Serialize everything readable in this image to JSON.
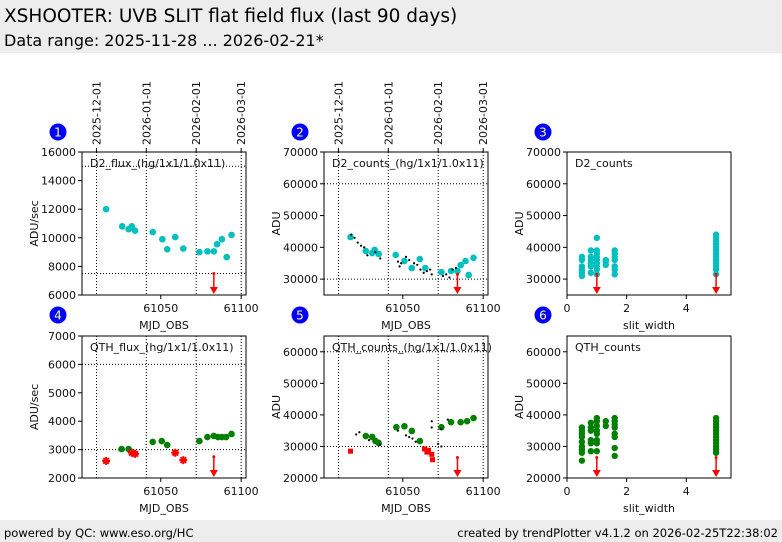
{
  "header": {
    "title": "XSHOOTER: UVB SLIT flat field flux (last 90 days)",
    "subtitle": "Data range: 2025-11-28 ... 2026-02-21*"
  },
  "footer": {
    "left": "powered by QC: www.eso.org/HC",
    "right": "created by trendPlotter v4.1.2 on 2026-02-25T22:38:02"
  },
  "colors": {
    "d2": "#00bfbf",
    "qth": "#008000",
    "outlier": "#ff0000",
    "badge": "#0000ff",
    "badge_text": "#ffff80",
    "header_bg": "#ededed"
  },
  "chart_data": [
    {
      "number": "1",
      "type": "scatter",
      "title": "D2_flux_(hg/1x1/1.0x11)",
      "xlabel": "MJD_OBS",
      "ylabel": "ADU/sec",
      "xlim": [
        61001,
        61103
      ],
      "ylim": [
        6000,
        16000
      ],
      "xticks": [
        61050,
        61100
      ],
      "yticks": [
        6000,
        8000,
        10000,
        12000,
        14000,
        16000
      ],
      "top_ticks": [
        {
          "x": 61010,
          "label": "2025-12-01"
        },
        {
          "x": 61041,
          "label": "2026-01-01"
        },
        {
          "x": 61072,
          "label": "2026-02-01"
        },
        {
          "x": 61100,
          "label": "2026-03-01"
        }
      ],
      "reference_lines": [
        15000,
        7500
      ],
      "series": [
        {
          "color": "#00bfbf",
          "marker": "dot",
          "x": [
            61016,
            61026,
            61030,
            61032,
            61034,
            61045,
            61051,
            61054,
            61059,
            61064,
            61074,
            61079,
            61083,
            61085,
            61088,
            61091,
            61094
          ],
          "y": [
            12000,
            10800,
            10600,
            10800,
            10500,
            10400,
            9900,
            9200,
            10050,
            9250,
            9000,
            9050,
            9050,
            9550,
            9900,
            8650,
            10200
          ]
        }
      ],
      "arrows": [
        {
          "x": 61083,
          "from": 7500,
          "to": 6000
        }
      ]
    },
    {
      "number": "2",
      "type": "scatter",
      "title": "D2_counts_(hg/1x1/1.0x11)",
      "xlabel": "MJD_OBS",
      "ylabel": "ADU",
      "xlim": [
        61001,
        61103
      ],
      "ylim": [
        25000,
        70000
      ],
      "xticks": [
        61050,
        61100
      ],
      "yticks": [
        30000,
        40000,
        50000,
        60000,
        70000
      ],
      "top_ticks": [
        {
          "x": 61010,
          "label": "2025-12-01"
        },
        {
          "x": 61041,
          "label": "2026-01-01"
        },
        {
          "x": 61072,
          "label": "2026-02-01"
        },
        {
          "x": 61100,
          "label": "2026-03-01"
        }
      ],
      "reference_lines": [
        60000,
        30000
      ],
      "series": [
        {
          "color": "#00bfbf",
          "marker": "dot",
          "x": [
            61017.5,
            61027,
            61031,
            61032.5,
            61035,
            61045.6,
            61051,
            61055.6,
            61060.6,
            61064,
            61074,
            61080,
            61084,
            61086,
            61089,
            61091,
            61094
          ],
          "y": [
            43250,
            38850,
            38200,
            39200,
            37900,
            37600,
            35700,
            33500,
            36300,
            33500,
            32200,
            32550,
            32550,
            34400,
            35700,
            31300,
            36700
          ]
        },
        {
          "color": "#000000",
          "marker": "small",
          "x": [
            61018,
            61020,
            61022,
            61024,
            61026,
            61028,
            61033,
            61036,
            61047,
            61048,
            61049,
            61052,
            61054,
            61057,
            61059,
            61061,
            61063,
            61065,
            61067,
            61068,
            61075,
            61077,
            61079,
            61081,
            61083
          ],
          "y": [
            44000,
            43000,
            41500,
            40500,
            40000,
            37500,
            38500,
            36500,
            35500,
            34000,
            35000,
            37000,
            36000,
            35000,
            34500,
            33000,
            32000,
            32500,
            33000,
            31500,
            31000,
            31500,
            30500,
            33000,
            33500
          ]
        }
      ],
      "arrows": [
        {
          "x": 61084,
          "from": 31500,
          "to": 25000
        }
      ]
    },
    {
      "number": "3",
      "type": "scatter",
      "title": "D2_counts",
      "xlabel": "slit_width",
      "ylabel": "ADU",
      "xlim": [
        0,
        5.5
      ],
      "ylim": [
        25000,
        70000
      ],
      "xticks": [
        0,
        2,
        4
      ],
      "yticks": [
        30000,
        40000,
        50000,
        60000,
        70000
      ],
      "reference_lines": [],
      "groups": [
        {
          "x": 0.5,
          "y": [
            31000,
            32000,
            33000,
            34000,
            36000,
            37000
          ]
        },
        {
          "x": 0.8,
          "y": [
            32000,
            34000,
            35000,
            36000,
            37000,
            39000
          ]
        },
        {
          "x": 1.0,
          "y": [
            31500,
            33000,
            34000,
            35000,
            36000,
            37000,
            38000,
            39000,
            43000
          ]
        },
        {
          "x": 1.3,
          "y": [
            34500,
            35500,
            36000
          ]
        },
        {
          "x": 1.6,
          "y": [
            31500,
            33000,
            34000,
            36000,
            37000,
            38000,
            39000
          ]
        },
        {
          "x": 5.0,
          "y": [
            31500,
            33000,
            34000,
            35000,
            36000,
            37000,
            38000,
            39000,
            40000,
            41000,
            42000,
            43000,
            44000
          ]
        }
      ],
      "group_color": "#00bfbf",
      "arrows": [
        {
          "x": 1.0,
          "from": 31500,
          "to": 25000
        },
        {
          "x": 5.0,
          "from": 31500,
          "to": 25000
        }
      ]
    },
    {
      "number": "4",
      "type": "scatter",
      "title": "QTH_flux_(hg/1x1/1.0x11)",
      "xlabel": "MJD_OBS",
      "ylabel": "ADU/sec",
      "xlim": [
        61001,
        61103
      ],
      "ylim": [
        2000,
        7000
      ],
      "xticks": [
        61050,
        61100
      ],
      "yticks": [
        2000,
        3000,
        4000,
        5000,
        6000,
        7000
      ],
      "date_lines": [
        61010,
        61041,
        61072,
        61100
      ],
      "reference_lines": [
        6000,
        3000
      ],
      "series": [
        {
          "color": "#008000",
          "marker": "dot",
          "x": [
            61025.6,
            61030,
            61045,
            61050.6,
            61054,
            61074,
            61079,
            61083,
            61085.6,
            61088,
            61090.6,
            61094
          ],
          "y": [
            3020,
            3020,
            3270,
            3300,
            3160,
            3300,
            3440,
            3480,
            3440,
            3440,
            3440,
            3550
          ]
        },
        {
          "color": "#ff0000",
          "marker": "star",
          "x": [
            61016,
            61032,
            61034,
            61059,
            61064
          ],
          "y": [
            2600,
            2890,
            2850,
            2890,
            2630
          ]
        }
      ],
      "arrows": [
        {
          "x": 61083,
          "from": 2750,
          "to": 2000
        }
      ]
    },
    {
      "number": "5",
      "type": "scatter",
      "title": "QTH_counts_(hg/1x1/1.0x11)",
      "xlabel": "MJD_OBS",
      "ylabel": "ADU",
      "xlim": [
        61001,
        61103
      ],
      "ylim": [
        20000,
        65000
      ],
      "xticks": [
        61050,
        61100
      ],
      "yticks": [
        20000,
        30000,
        40000,
        50000,
        60000
      ],
      "date_lines": [
        61010,
        61041,
        61072,
        61100
      ],
      "reference_lines": [
        60000,
        30000
      ],
      "series": [
        {
          "color": "#008000",
          "marker": "dot",
          "x": [
            61027,
            61031,
            61033,
            61035,
            61046,
            61051,
            61055.6,
            61060.6,
            61074,
            61080,
            61086,
            61090,
            61094
          ],
          "y": [
            33300,
            33000,
            31700,
            31100,
            36100,
            36400,
            34900,
            31700,
            36100,
            37700,
            37700,
            38000,
            39000
          ]
        },
        {
          "color": "#ff0000",
          "marker": "square",
          "x": [
            61017.5,
            61063.5,
            61065,
            61066,
            61068,
            61068.5
          ],
          "y": [
            28500,
            29200,
            28200,
            28800,
            27500,
            25800
          ]
        },
        {
          "color": "#000000",
          "marker": "small",
          "x": [
            61021,
            61023,
            61029,
            61036,
            61047,
            61052,
            61054,
            61056,
            61058,
            61068,
            61068,
            61072,
            61074,
            61074,
            61078
          ],
          "y": [
            33800,
            34500,
            32000,
            30500,
            35000,
            33500,
            33000,
            32500,
            31500,
            38000,
            36000,
            30800,
            30000,
            35500,
            38500
          ]
        }
      ],
      "arrows": [
        {
          "x": 61084,
          "from": 26500,
          "to": 20000
        }
      ]
    },
    {
      "number": "6",
      "type": "scatter",
      "title": "QTH_counts",
      "xlabel": "slit_width",
      "ylabel": "ADU",
      "xlim": [
        0,
        5.5
      ],
      "ylim": [
        20000,
        65000
      ],
      "xticks": [
        0,
        2,
        4
      ],
      "yticks": [
        20000,
        30000,
        40000,
        50000,
        60000
      ],
      "reference_lines": [],
      "groups": [
        {
          "x": 0.5,
          "y": [
            25500,
            28000,
            29000,
            30000,
            31500,
            33000,
            34000,
            35000,
            36000
          ]
        },
        {
          "x": 0.8,
          "y": [
            28500,
            31000,
            32000,
            35000,
            36000,
            37500
          ]
        },
        {
          "x": 1.0,
          "y": [
            28500,
            31000,
            32000,
            34000,
            35000,
            36500,
            38000,
            39000
          ]
        },
        {
          "x": 1.3,
          "y": [
            36500,
            38000
          ]
        },
        {
          "x": 1.6,
          "y": [
            27000,
            29500,
            33000,
            34000,
            36000,
            37000,
            38000,
            39000
          ]
        },
        {
          "x": 5.0,
          "y": [
            28000,
            29000,
            30000,
            31000,
            32000,
            33000,
            34000,
            35000,
            36000,
            37000,
            38000,
            39000
          ]
        }
      ],
      "group_color": "#008000",
      "arrows": [
        {
          "x": 1.0,
          "from": 26500,
          "to": 20000
        },
        {
          "x": 5.0,
          "from": 26500,
          "to": 20000
        }
      ]
    }
  ]
}
